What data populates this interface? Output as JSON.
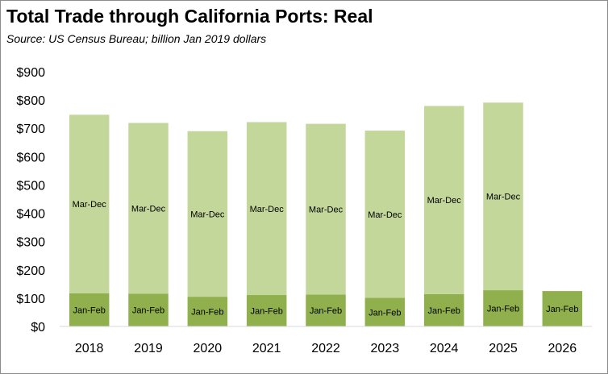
{
  "chart_data": {
    "type": "bar",
    "stacked": true,
    "title": "Total Trade through California Ports:  Real",
    "subtitle": "Source:  US Census Bureau; billion Jan 2019 dollars",
    "categories": [
      "2018",
      "2019",
      "2020",
      "2021",
      "2022",
      "2023",
      "2024",
      "2025",
      "2026"
    ],
    "series": [
      {
        "name": "Jan-Feb",
        "color": "#8fb04c",
        "values": [
          117,
          116,
          105,
          111,
          113,
          101,
          114,
          128,
          125
        ]
      },
      {
        "name": "Mar-Dec",
        "color": "#c4d79b",
        "values": [
          631,
          603,
          585,
          611,
          603,
          591,
          665,
          663,
          null
        ]
      }
    ],
    "ylim": [
      0,
      900
    ],
    "yticks": [
      0,
      100,
      200,
      300,
      400,
      500,
      600,
      700,
      800,
      900
    ],
    "ytick_labels": [
      "$0",
      "$100",
      "$200",
      "$300",
      "$400",
      "$500",
      "$600",
      "$700",
      "$800",
      "$900"
    ],
    "xlabel": "",
    "ylabel": "",
    "grid": false,
    "legend": "none"
  }
}
